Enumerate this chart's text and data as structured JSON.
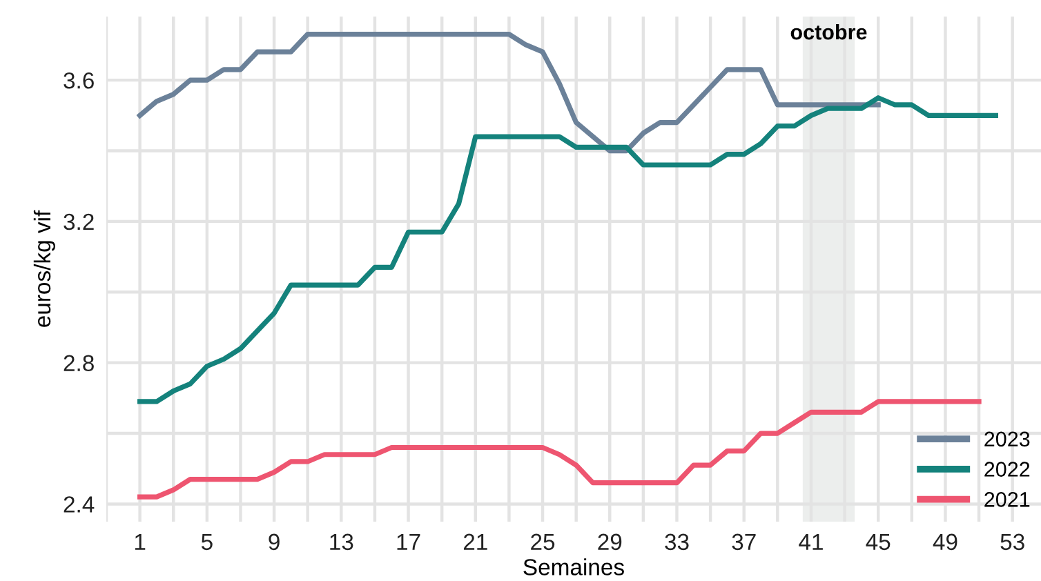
{
  "chart_data": {
    "type": "line",
    "xlabel": "Semaines",
    "ylabel": "euros/kg vif",
    "x": [
      1,
      2,
      3,
      4,
      5,
      6,
      7,
      8,
      9,
      10,
      11,
      12,
      13,
      14,
      15,
      16,
      17,
      18,
      19,
      20,
      21,
      22,
      23,
      24,
      25,
      26,
      27,
      28,
      29,
      30,
      31,
      32,
      33,
      34,
      35,
      36,
      37,
      38,
      39,
      40,
      41,
      42,
      43,
      44,
      45,
      46,
      47,
      48,
      49,
      50,
      51,
      52
    ],
    "series": [
      {
        "name": "2023",
        "color": "#6b8199",
        "values": [
          3.5,
          3.54,
          3.56,
          3.6,
          3.6,
          3.63,
          3.63,
          3.68,
          3.68,
          3.68,
          3.73,
          3.73,
          3.73,
          3.73,
          3.73,
          3.73,
          3.73,
          3.73,
          3.73,
          3.73,
          3.73,
          3.73,
          3.73,
          3.7,
          3.68,
          3.59,
          3.48,
          3.44,
          3.4,
          3.4,
          3.45,
          3.48,
          3.48,
          3.53,
          3.58,
          3.63,
          3.63,
          3.63,
          3.53,
          3.53,
          3.53,
          3.53,
          3.53,
          3.53,
          3.53,
          null,
          null,
          null,
          null,
          null,
          null,
          null
        ]
      },
      {
        "name": "2022",
        "color": "#14827c",
        "values": [
          2.69,
          2.69,
          2.72,
          2.74,
          2.79,
          2.81,
          2.84,
          2.89,
          2.94,
          3.02,
          3.02,
          3.02,
          3.02,
          3.02,
          3.07,
          3.07,
          3.17,
          3.17,
          3.17,
          3.25,
          3.44,
          3.44,
          3.44,
          3.44,
          3.44,
          3.44,
          3.41,
          3.41,
          3.41,
          3.41,
          3.36,
          3.36,
          3.36,
          3.36,
          3.36,
          3.39,
          3.39,
          3.42,
          3.47,
          3.47,
          3.5,
          3.52,
          3.52,
          3.52,
          3.55,
          3.53,
          3.53,
          3.5,
          3.5,
          3.5,
          3.5,
          3.5
        ]
      },
      {
        "name": "2021",
        "color": "#ee5570",
        "values": [
          2.42,
          2.42,
          2.44,
          2.47,
          2.47,
          2.47,
          2.47,
          2.47,
          2.49,
          2.52,
          2.52,
          2.54,
          2.54,
          2.54,
          2.54,
          2.56,
          2.56,
          2.56,
          2.56,
          2.56,
          2.56,
          2.56,
          2.56,
          2.56,
          2.56,
          2.54,
          2.51,
          2.46,
          2.46,
          2.46,
          2.46,
          2.46,
          2.46,
          2.51,
          2.51,
          2.55,
          2.55,
          2.6,
          2.6,
          2.63,
          2.66,
          2.66,
          2.66,
          2.66,
          2.69,
          2.69,
          2.69,
          2.69,
          2.69,
          2.69,
          2.69,
          null
        ]
      }
    ],
    "xlim": [
      -1,
      54.7
    ],
    "ylim": [
      2.35,
      3.78
    ],
    "xticks": [
      {
        "value": -1,
        "label": null
      },
      1,
      {
        "value": 3,
        "label": null
      },
      5,
      {
        "value": 7,
        "label": null
      },
      9,
      {
        "value": 11,
        "label": null
      },
      13,
      {
        "value": 15,
        "label": null
      },
      17,
      {
        "value": 19,
        "label": null
      },
      21,
      {
        "value": 23,
        "label": null
      },
      25,
      {
        "value": 27,
        "label": null
      },
      29,
      {
        "value": 31,
        "label": null
      },
      33,
      {
        "value": 35,
        "label": null
      },
      37,
      {
        "value": 39,
        "label": null
      },
      41,
      {
        "value": 43,
        "label": null
      },
      45,
      {
        "value": 47,
        "label": null
      },
      49,
      {
        "value": 51,
        "label": null
      },
      53
    ],
    "yticks": [
      {
        "value": 2.4,
        "label": "2.4"
      },
      {
        "value": 2.6,
        "label": null
      },
      {
        "value": 2.8,
        "label": "2.8"
      },
      {
        "value": 3.0,
        "label": null
      },
      {
        "value": 3.2,
        "label": "3.2"
      },
      {
        "value": 3.4,
        "label": null
      },
      {
        "value": 3.6,
        "label": "3.6"
      }
    ],
    "bands": [
      {
        "axis": "x",
        "from": 40.5,
        "to": 43.6,
        "label": "octobre",
        "color": "#eceeed"
      }
    ],
    "grid": true,
    "legend": "bottom right",
    "line_style": "solid"
  }
}
